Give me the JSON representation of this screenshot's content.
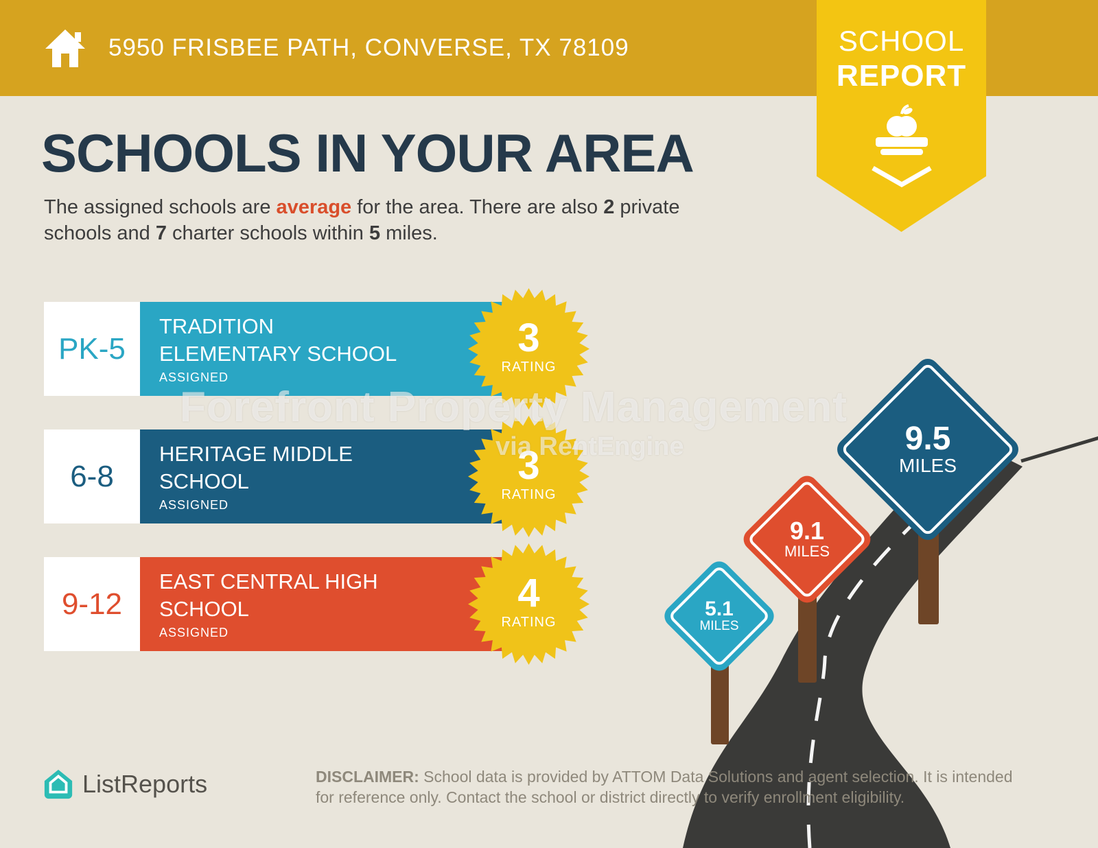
{
  "header": {
    "address": "5950 FRISBEE PATH, CONVERSE, TX 78109",
    "ribbon": {
      "line1": "SCHOOL",
      "line2": "REPORT"
    }
  },
  "main": {
    "title": "SCHOOLS IN YOUR AREA",
    "subtitle": {
      "part1": "The assigned schools are ",
      "highlight": "average",
      "part2": " for the area. There are also ",
      "num_private": "2",
      "part3": " private schools and ",
      "num_charter": "7",
      "part4": " charter schools within ",
      "num_miles": "5",
      "part5": " miles."
    }
  },
  "schools": [
    {
      "grade": "PK-5",
      "name": "TRADITION ELEMENTARY SCHOOL",
      "status": "ASSIGNED",
      "rating": "3",
      "rating_label": "RATING",
      "color": "#2aa6c4"
    },
    {
      "grade": "6-8",
      "name": "HERITAGE MIDDLE SCHOOL",
      "status": "ASSIGNED",
      "rating": "3",
      "rating_label": "RATING",
      "color": "#1b5d80"
    },
    {
      "grade": "9-12",
      "name": "EAST CENTRAL HIGH SCHOOL",
      "status": "ASSIGNED",
      "rating": "4",
      "rating_label": "RATING",
      "color": "#df4e2e"
    }
  ],
  "signs": [
    {
      "miles": "5.1",
      "label": "MILES",
      "color": "#2aa6c4"
    },
    {
      "miles": "9.1",
      "label": "MILES",
      "color": "#df4e2e"
    },
    {
      "miles": "9.5",
      "label": "MILES",
      "color": "#1b5d80"
    }
  ],
  "watermark": {
    "line1": "Forefront Property Management",
    "line2": "via RentEngine"
  },
  "footer": {
    "logo_text": "ListReports",
    "disclaimer_label": "DISCLAIMER:",
    "disclaimer_text": " School data is provided by ATTOM Data Solutions and agent selection. It is intended for reference only. Contact the school or district directly to verify enrollment eligibility."
  },
  "colors": {
    "header_gold": "#d6a31f",
    "ribbon_yellow": "#f3c512",
    "background": "#e9e5db",
    "title_navy": "#25394a",
    "highlight_red": "#d94e2b",
    "star_yellow": "#f0c319",
    "road_gray": "#3a3a38",
    "post_brown": "#6e4527",
    "teal": "#2aa6c4",
    "dark_blue": "#1b5d80",
    "red_orange": "#df4e2e",
    "logo_teal": "#2cbcb4"
  }
}
